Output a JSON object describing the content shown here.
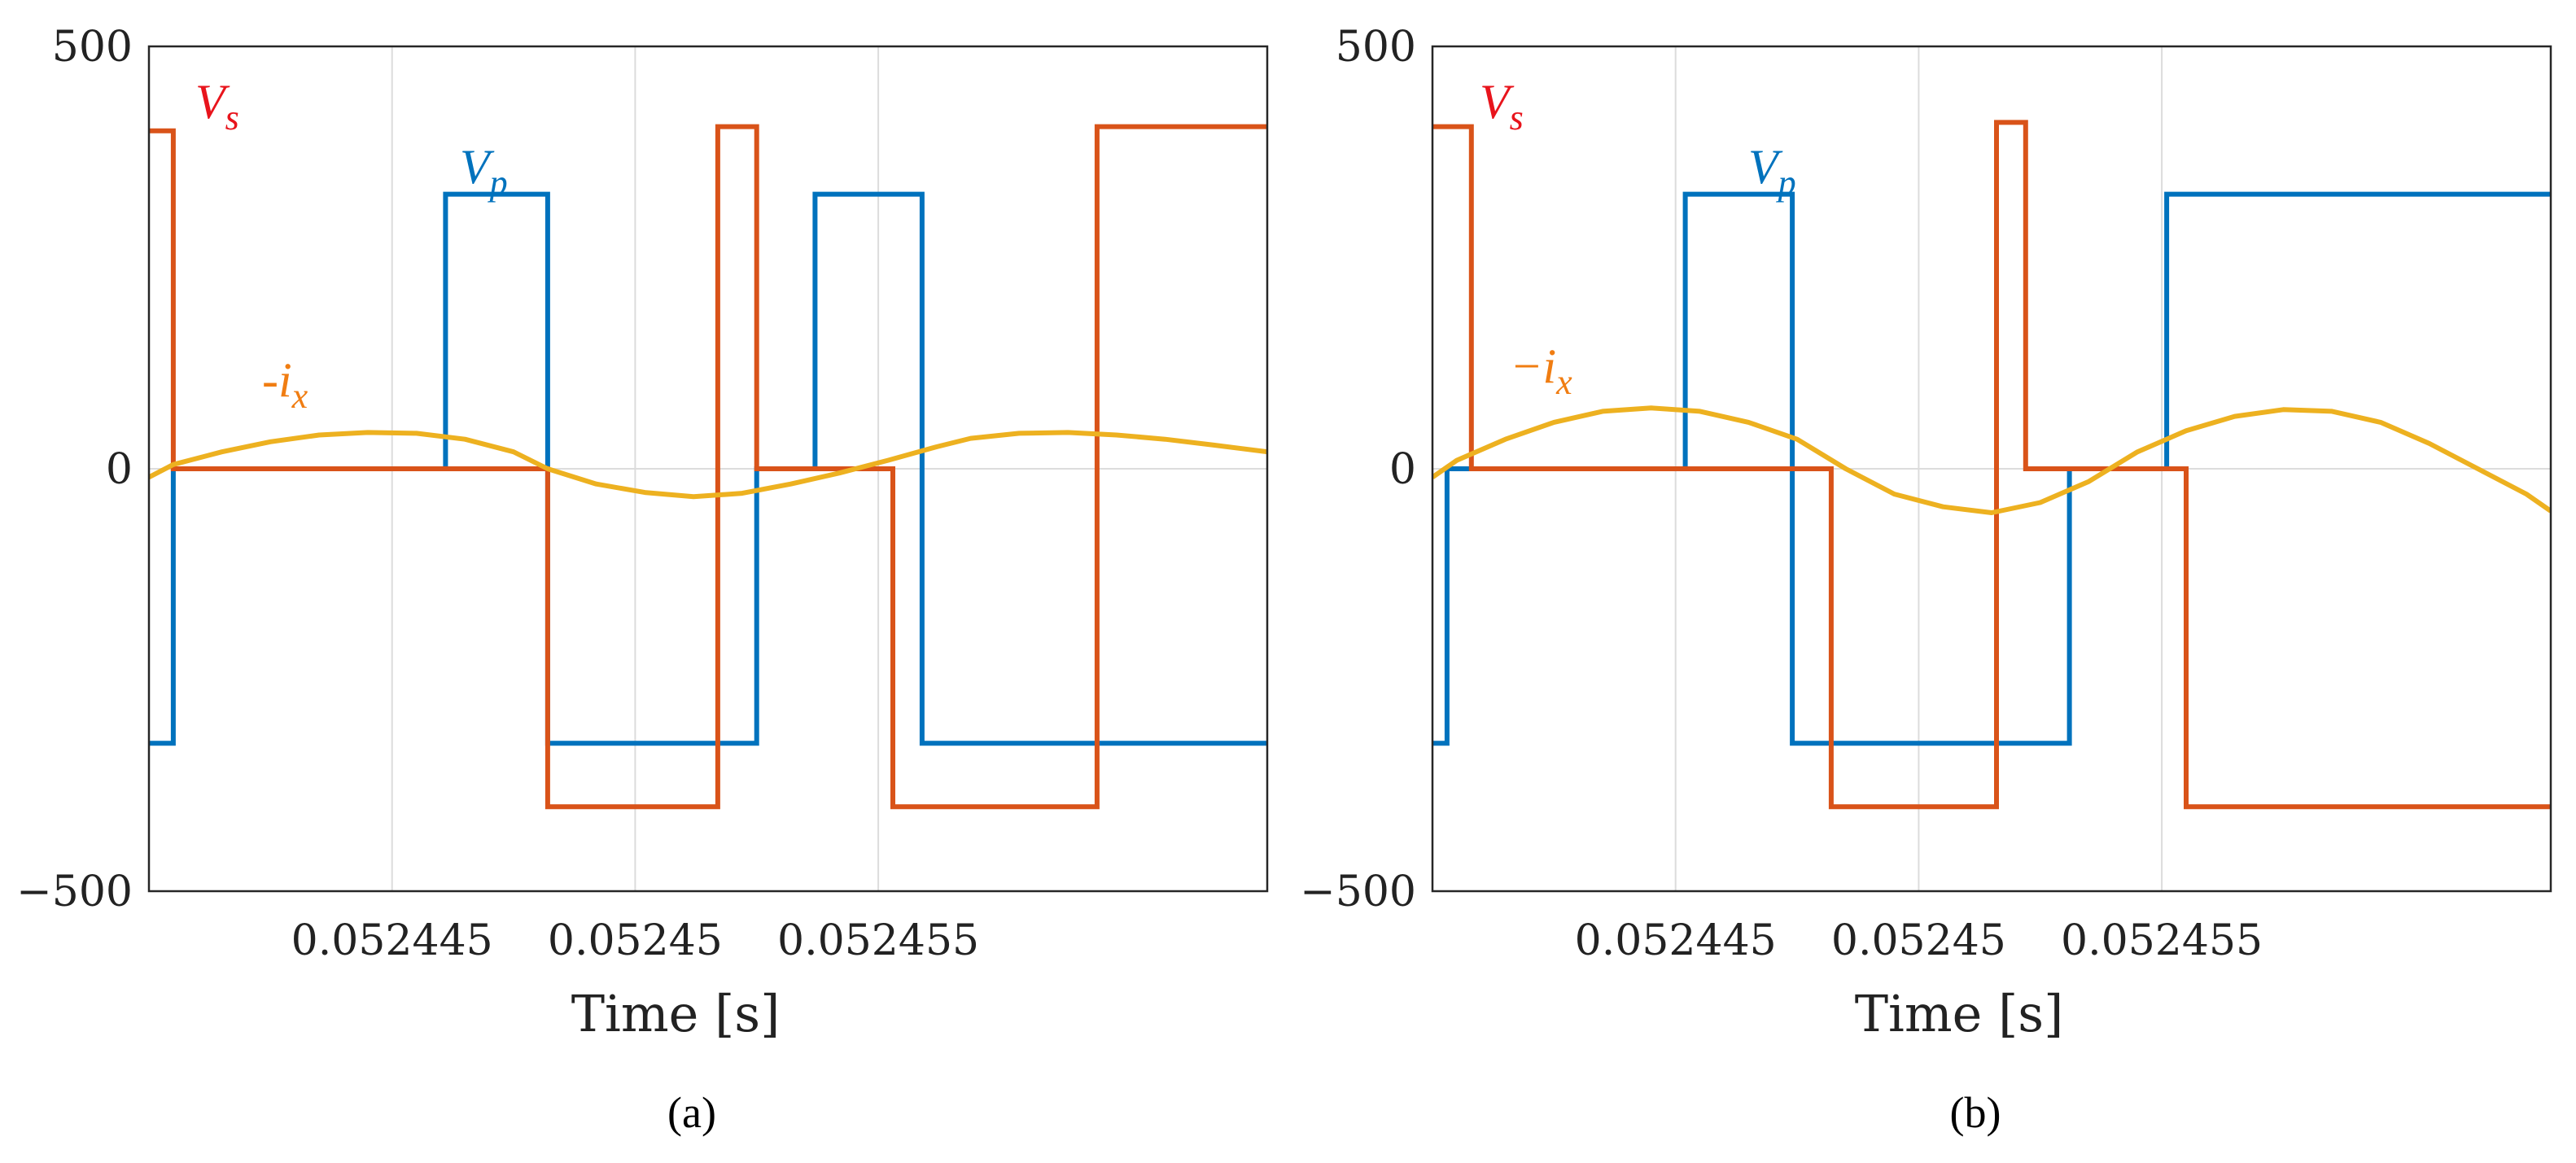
{
  "colors": {
    "vs": "#D95319",
    "vp": "#0072BD",
    "ix": "#EDB120",
    "label_vs": "#E8141C",
    "label_ix": "#F07D12"
  },
  "chart_data": [
    {
      "type": "line",
      "caption": "(a)",
      "xlabel": "Time [s]",
      "xlim": [
        0.05244,
        0.052463
      ],
      "ylim": [
        -500,
        500
      ],
      "xticks": [
        0.052445,
        0.05245,
        0.052455
      ],
      "xtick_labels": [
        "0.052445",
        "0.05245",
        "0.052455"
      ],
      "yticks": [
        -500,
        0,
        500
      ],
      "ytick_labels": [
        "−500",
        "0",
        "500"
      ],
      "grid": true,
      "labels": {
        "vs": "V_s",
        "vp": "V_p",
        "ix": "-i_x"
      },
      "series": [
        {
          "key": "vs",
          "x": [
            0.05244,
            0.0524405,
            0.0524405,
            0.0524482,
            0.0524482,
            0.0524517,
            0.0524517,
            0.0524525,
            0.0524525,
            0.0524553,
            0.0524553,
            0.0524595,
            0.0524595,
            0.052463
          ],
          "y": [
            400,
            400,
            0,
            0,
            -400,
            -400,
            405,
            405,
            0,
            0,
            -400,
            -400,
            405,
            405
          ]
        },
        {
          "key": "vp",
          "x": [
            0.05244,
            0.0524405,
            0.0524405,
            0.0524461,
            0.0524461,
            0.0524482,
            0.0524482,
            0.0524525,
            0.0524525,
            0.0524537,
            0.0524537,
            0.0524559,
            0.0524559,
            0.052463
          ],
          "y": [
            -325,
            -325,
            0,
            0,
            325,
            325,
            -325,
            -325,
            0,
            0,
            325,
            325,
            -325,
            -325
          ]
        },
        {
          "key": "ix",
          "x": [
            0.05244,
            0.0524405,
            0.0524415,
            0.0524425,
            0.0524435,
            0.0524445,
            0.0524455,
            0.0524465,
            0.0524475,
            0.0524482,
            0.0524492,
            0.0524502,
            0.0524512,
            0.0524522,
            0.0524532,
            0.0524542,
            0.0524552,
            0.0524562,
            0.0524569,
            0.0524579,
            0.0524589,
            0.0524599,
            0.0524609,
            0.0524619,
            0.052463
          ],
          "y": [
            -10,
            5,
            20,
            32,
            40,
            43,
            42,
            35,
            20,
            0,
            -18,
            -28,
            -33,
            -29,
            -18,
            -5,
            10,
            26,
            36,
            42,
            43,
            40,
            35,
            28,
            20
          ]
        }
      ]
    },
    {
      "type": "line",
      "caption": "(b)",
      "xlabel": "Time [s]",
      "xlim": [
        0.05244,
        0.052463
      ],
      "ylim": [
        -500,
        500
      ],
      "xticks": [
        0.052445,
        0.05245,
        0.052455
      ],
      "xtick_labels": [
        "0.052445",
        "0.05245",
        "0.052455"
      ],
      "yticks": [
        -500,
        0,
        500
      ],
      "ytick_labels": [
        "−500",
        "0",
        "500"
      ],
      "grid": true,
      "labels": {
        "vs": "V_s",
        "vp": "V_p",
        "ix": "−i_x"
      },
      "series": [
        {
          "key": "vs",
          "x": [
            0.05244,
            0.0524408,
            0.0524408,
            0.0524482,
            0.0524482,
            0.0524516,
            0.0524516,
            0.0524522,
            0.0524522,
            0.0524555,
            0.0524555,
            0.052463
          ],
          "y": [
            405,
            405,
            0,
            0,
            -400,
            -400,
            410,
            410,
            0,
            0,
            -400,
            -400
          ]
        },
        {
          "key": "vp",
          "x": [
            0.05244,
            0.0524403,
            0.0524403,
            0.0524452,
            0.0524452,
            0.0524474,
            0.0524474,
            0.0524531,
            0.0524531,
            0.0524551,
            0.0524551,
            0.052463
          ],
          "y": [
            -325,
            -325,
            0,
            0,
            325,
            325,
            -325,
            -325,
            0,
            0,
            325,
            325
          ]
        },
        {
          "key": "ix",
          "x": [
            0.05244,
            0.0524405,
            0.0524415,
            0.0524425,
            0.0524435,
            0.0524445,
            0.0524455,
            0.0524465,
            0.0524475,
            0.0524485,
            0.0524495,
            0.0524505,
            0.0524515,
            0.0524525,
            0.0524535,
            0.0524545,
            0.0524555,
            0.0524565,
            0.0524575,
            0.0524585,
            0.0524595,
            0.0524605,
            0.0524615,
            0.0524625,
            0.052463
          ],
          "y": [
            -10,
            10,
            35,
            55,
            68,
            72,
            68,
            55,
            35,
            0,
            -30,
            -45,
            -52,
            -40,
            -15,
            20,
            45,
            62,
            70,
            68,
            55,
            30,
            0,
            -30,
            -50
          ]
        }
      ]
    }
  ]
}
